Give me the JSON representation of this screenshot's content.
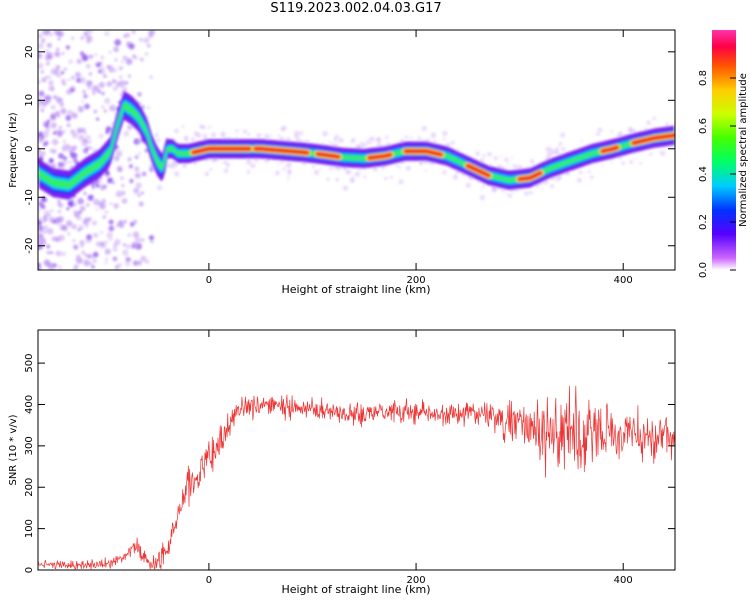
{
  "title": "S119.2023.002.04.03.G17",
  "chart_data": [
    {
      "type": "heatmap",
      "xlabel": "Height of straight line (km)",
      "ylabel": "Frequency (Hz)",
      "xlim": [
        -165,
        450
      ],
      "ylim": [
        -25,
        24.5
      ],
      "xticks": [
        0,
        200,
        400
      ],
      "yticks": [
        -20,
        -10,
        0,
        10,
        20
      ],
      "ridge": {
        "x": [
          -165,
          -150,
          -135,
          -120,
          -105,
          -95,
          -88,
          -82,
          -75,
          -68,
          -60,
          -55,
          -50,
          -45,
          -40,
          -35,
          -30,
          -20,
          0,
          50,
          90,
          110,
          130,
          150,
          170,
          190,
          210,
          230,
          250,
          270,
          290,
          310,
          330,
          350,
          370,
          390,
          410,
          430,
          450
        ],
        "y": [
          -5,
          -7,
          -7.5,
          -5,
          -3,
          -0.5,
          5,
          9,
          8,
          6.5,
          3.5,
          0,
          -2.5,
          -4,
          0,
          0,
          -1,
          -1,
          0,
          0,
          -0.7,
          -1.2,
          -1.8,
          -2,
          -1.5,
          -0.5,
          -0.5,
          -1.5,
          -3.5,
          -5.5,
          -6.5,
          -6,
          -4,
          -2.5,
          -1,
          0,
          1.2,
          2.2,
          2.8
        ]
      },
      "colorbar": {
        "label": "Normalized spectral amplitude",
        "ticks": [
          0.0,
          0.2,
          0.4,
          0.6,
          0.8
        ],
        "range": [
          0,
          1
        ]
      }
    },
    {
      "type": "line",
      "xlabel": "Height of straight line (km)",
      "ylabel": "SNR (10 * v/v)",
      "xlim": [
        -165,
        450
      ],
      "ylim": [
        0,
        580
      ],
      "xticks": [
        0,
        200,
        400
      ],
      "yticks": [
        0,
        100,
        200,
        300,
        400,
        500
      ],
      "color": "#ee3333",
      "trend": {
        "x": [
          -165,
          -130,
          -100,
          -80,
          -70,
          -60,
          -50,
          -40,
          -30,
          -20,
          -10,
          0,
          10,
          20,
          30,
          40,
          60,
          100,
          150,
          200,
          250,
          300,
          330,
          350,
          370,
          400,
          430,
          450
        ],
        "y": [
          15,
          10,
          15,
          35,
          60,
          20,
          15,
          50,
          140,
          200,
          240,
          270,
          300,
          350,
          385,
          395,
          400,
          390,
          375,
          380,
          380,
          360,
          340,
          330,
          340,
          330,
          320,
          330
        ]
      },
      "noise": {
        "x": [
          -165,
          -50,
          0,
          50,
          250,
          300,
          330,
          350,
          370,
          400,
          450
        ],
        "amplitude": [
          6,
          20,
          45,
          20,
          25,
          40,
          80,
          110,
          90,
          55,
          40
        ]
      }
    }
  ]
}
